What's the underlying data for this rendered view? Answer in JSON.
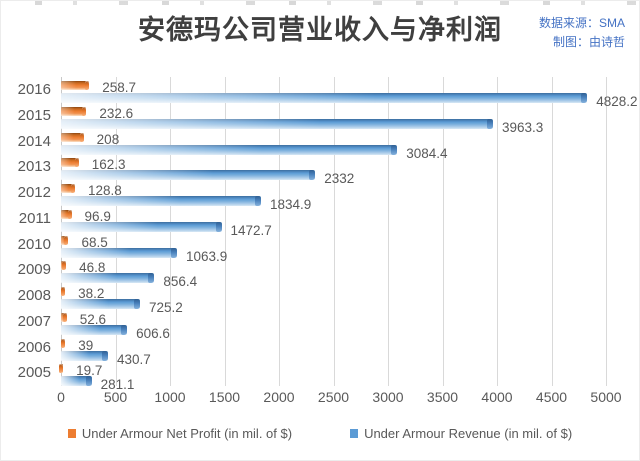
{
  "header": {
    "title": "安德玛公司营业收入与净利润",
    "source_note": "数据来源：SMA",
    "credit_note": "制图：由诗哲"
  },
  "chart_data": {
    "type": "bar",
    "orientation": "horizontal",
    "title": "安德玛公司营业收入与净利润",
    "categories": [
      "2016",
      "2015",
      "2014",
      "2013",
      "2012",
      "2011",
      "2010",
      "2009",
      "2008",
      "2007",
      "2006",
      "2005"
    ],
    "series": [
      {
        "name": "Under Armour Net Profit (in mil. of $)",
        "color": "#ED7D31",
        "values": [
          258.7,
          232.6,
          208,
          162.3,
          128.8,
          96.9,
          68.5,
          46.8,
          38.2,
          52.6,
          39,
          19.7
        ],
        "labels": [
          "258.7",
          "232.6",
          "208",
          "162.3",
          "128.8",
          "96.9",
          "68.5",
          "46.8",
          "38.2",
          "52.6",
          "39",
          "19.7"
        ]
      },
      {
        "name": "Under Armour Revenue (in mil. of $)",
        "color": "#5B9BD5",
        "values": [
          4828.2,
          3963.3,
          3084.4,
          2332,
          1834.9,
          1472.7,
          1063.9,
          856.4,
          725.2,
          606.6,
          430.7,
          281.1
        ],
        "labels": [
          "4828.2",
          "3963.3",
          "3084.4",
          "2332",
          "1834.9",
          "1472.7",
          "1063.9",
          "856.4",
          "725.2",
          "606.6",
          "430.7",
          "281.1"
        ]
      }
    ],
    "x_ticks": [
      "0",
      "500",
      "1000",
      "1500",
      "2000",
      "2500",
      "3000",
      "3500",
      "4000",
      "4500",
      "5000"
    ],
    "xlim": [
      0,
      5000
    ],
    "grid": "vertical-only",
    "legend_position": "bottom"
  },
  "colors": {
    "net_profit": "#ED7D31",
    "revenue": "#5B9BD5",
    "gridline": "#D9D9D9",
    "axis_text": "#595959",
    "title_text": "#3F3F3F",
    "note_text": "#4472C4"
  }
}
